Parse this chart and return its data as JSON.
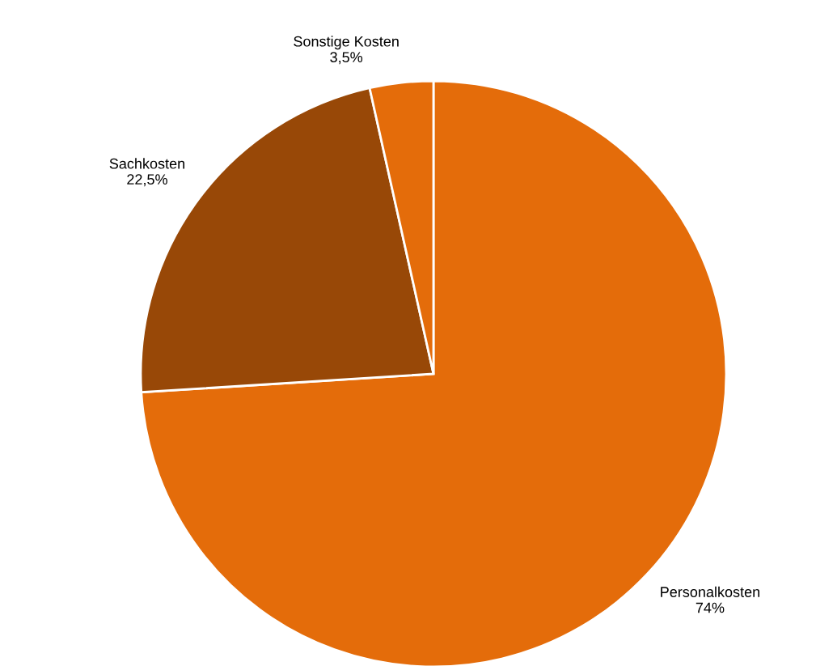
{
  "chart_data": {
    "type": "pie",
    "categories": [
      "Personalkosten",
      "Sachkosten",
      "Sonstige Kosten"
    ],
    "values": [
      74,
      22.5,
      3.5
    ],
    "colors": [
      "#e46c0a",
      "#984807",
      "#e46c0a"
    ],
    "value_labels": [
      "74%",
      "22,5%",
      "3,5%"
    ],
    "legend": false
  }
}
